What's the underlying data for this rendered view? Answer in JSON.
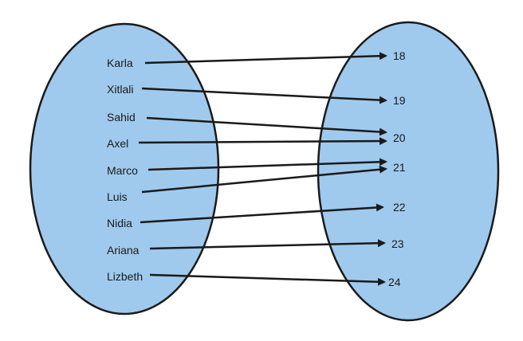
{
  "domain_names": [
    "Karla",
    "Xitlali",
    "Sahid",
    "Axel",
    "Marco",
    "Luis",
    "Nidia",
    "Ariana",
    "Lizbeth"
  ],
  "range_values": [
    "18",
    "19",
    "20",
    "21",
    "22",
    "23",
    "24"
  ],
  "mapping": [
    {
      "from": "Karla",
      "to": "18"
    },
    {
      "from": "Xitlali",
      "to": "19"
    },
    {
      "from": "Sahid",
      "to": "20"
    },
    {
      "from": "Axel",
      "to": "20"
    },
    {
      "from": "Marco",
      "to": "21"
    },
    {
      "from": "Luis",
      "to": "21"
    },
    {
      "from": "Nidia",
      "to": "22"
    },
    {
      "from": "Ariana",
      "to": "23"
    },
    {
      "from": "Lizbeth",
      "to": "24"
    }
  ],
  "colors": {
    "set_fill": "#9fcaee",
    "stroke": "#1a1a1a",
    "text": "#1a1a1a"
  }
}
